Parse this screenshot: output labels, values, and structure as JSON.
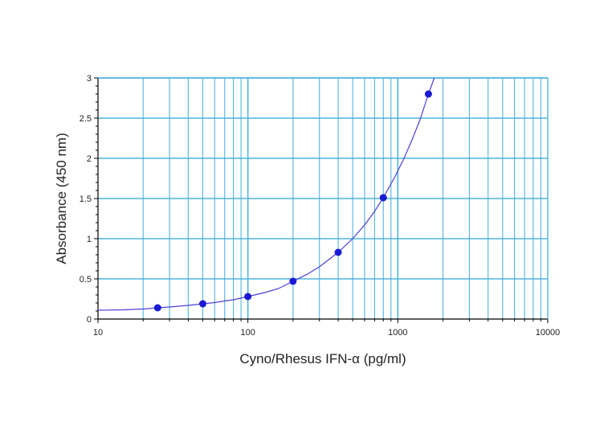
{
  "chart_data": {
    "type": "scatter",
    "title": "",
    "xlabel": "Cyno/Rhesus IFN-α (pg/ml)",
    "ylabel": "Absorbance (450 nm)",
    "xscale": "log",
    "xlim": [
      10,
      10000
    ],
    "ylim": [
      0,
      3
    ],
    "xticks": [
      10,
      100,
      1000,
      10000
    ],
    "xtick_labels": [
      "10",
      "100",
      "1000",
      "10000"
    ],
    "yticks": [
      0,
      0.5,
      1,
      1.5,
      2,
      2.5,
      3
    ],
    "ytick_labels": [
      "0",
      "0.5",
      "1",
      "1.5",
      "2",
      "2.5",
      "3"
    ],
    "grid": true,
    "legend": "none",
    "series": [
      {
        "x": [
          25,
          50,
          100,
          200,
          400,
          800,
          1600
        ],
        "y": [
          0.14,
          0.19,
          0.28,
          0.47,
          0.83,
          1.51,
          2.8
        ]
      }
    ],
    "fit_curve": {
      "x": [
        10,
        15,
        20,
        25,
        30,
        40,
        50,
        60,
        70,
        80,
        100,
        130,
        160,
        200,
        250,
        300,
        400,
        500,
        600,
        700,
        800,
        950,
        1100,
        1250,
        1400,
        1600,
        1750
      ],
      "y": [
        0.11,
        0.115,
        0.125,
        0.14,
        0.15,
        0.17,
        0.19,
        0.205,
        0.225,
        0.24,
        0.28,
        0.33,
        0.38,
        0.47,
        0.56,
        0.65,
        0.83,
        1.0,
        1.17,
        1.34,
        1.51,
        1.76,
        2.0,
        2.24,
        2.47,
        2.8,
        3.0
      ]
    },
    "colors": {
      "grid": "#4fb3e0",
      "points": "#1a1ad6",
      "curve": "#4a3fd8",
      "axis": "#000000"
    }
  }
}
